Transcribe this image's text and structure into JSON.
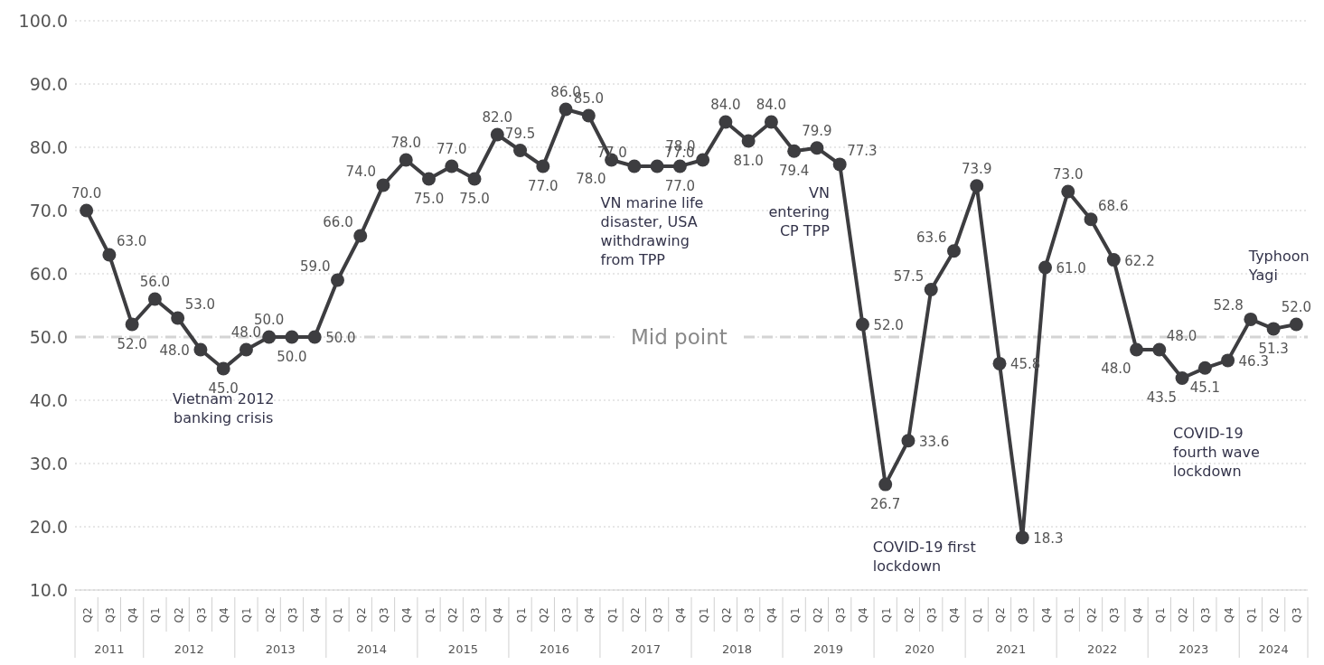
{
  "chart_data": {
    "type": "line",
    "categories": [
      "Q2",
      "Q3",
      "Q4",
      "Q1",
      "Q2",
      "Q3",
      "Q4",
      "Q1",
      "Q2",
      "Q3",
      "Q4",
      "Q1",
      "Q2",
      "Q3",
      "Q4",
      "Q1",
      "Q2",
      "Q3",
      "Q4",
      "Q1",
      "Q2",
      "Q3",
      "Q4",
      "Q1",
      "Q2",
      "Q3",
      "Q4",
      "Q1",
      "Q2",
      "Q3",
      "Q4",
      "Q1",
      "Q2",
      "Q3",
      "Q4",
      "Q1",
      "Q2",
      "Q3",
      "Q4",
      "Q1",
      "Q2",
      "Q3",
      "Q4",
      "Q1",
      "Q2",
      "Q3",
      "Q4",
      "Q1",
      "Q2",
      "Q3",
      "Q4",
      "Q1",
      "Q2",
      "Q3"
    ],
    "series": [
      {
        "color": "#3d3d40",
        "values": [
          70.0,
          63.0,
          52.0,
          56.0,
          53.0,
          48.0,
          45.0,
          48.0,
          50.0,
          50.0,
          50.0,
          59.0,
          66.0,
          74.0,
          78.0,
          75.0,
          77.0,
          75.0,
          82.0,
          79.5,
          77.0,
          86.0,
          85.0,
          78.0,
          77.0,
          77.0,
          77.0,
          78.0,
          84.0,
          81.0,
          84.0,
          79.4,
          79.9,
          77.3,
          52.0,
          26.7,
          33.6,
          57.5,
          63.6,
          73.9,
          45.8,
          18.3,
          61.0,
          73.0,
          68.6,
          62.2,
          48.0,
          48.0,
          43.5,
          45.1,
          46.3,
          52.8,
          51.3,
          52.0
        ],
        "value_labels": [
          "70.0",
          "63.0",
          "52.0",
          "56.0",
          "53.0",
          "48.0",
          "45.0",
          "48.0",
          "50.0",
          "50.0",
          "50.0",
          "59.0",
          "66.0",
          "74.0",
          "78.0",
          "75.0",
          "77.0",
          "75.0",
          "82.0",
          "79.5",
          "77.0",
          "86.0",
          "85.0",
          "78.0",
          "77.0",
          "77.0",
          "77.0",
          "78.0",
          "84.0",
          "81.0",
          "84.0",
          "79.4",
          "79.9",
          "77.3",
          "52.0",
          "26.7",
          "33.6",
          "57.5",
          "63.6",
          "73.9",
          "45.8",
          "18.3",
          "61.0",
          "73.0",
          "68.6",
          "62.2",
          "48.0",
          "48.0",
          "43.5",
          "45.1",
          "46.3",
          "52.8",
          "51.3",
          "52.0"
        ]
      }
    ],
    "ylim": [
      10,
      100
    ],
    "yticks": [
      {
        "value": 10,
        "label": "10.0"
      },
      {
        "value": 20,
        "label": "20.0"
      },
      {
        "value": 30,
        "label": "30.0"
      },
      {
        "value": 40,
        "label": "40.0"
      },
      {
        "value": 50,
        "label": "50.0"
      },
      {
        "value": 60,
        "label": "60.0"
      },
      {
        "value": 70,
        "label": "70.0"
      },
      {
        "value": 80,
        "label": "80.0"
      },
      {
        "value": 90,
        "label": "90.0"
      },
      {
        "value": 100,
        "label": "100.0"
      }
    ],
    "grid": "y",
    "marker": "circle",
    "line_style": "solid",
    "ref_lines": [
      {
        "axis": "y",
        "value": 50,
        "label": "Mid point",
        "color": "#d4d4d4",
        "line_style": "dashed"
      }
    ],
    "annotations": [
      "2011",
      "2012",
      "2013",
      "2014",
      "2015",
      "2016",
      "2017",
      "2018",
      "2019",
      "2020",
      "2021",
      "2022",
      "2023",
      "2024",
      "Vietnam 2012 banking crisis",
      "VN marine life disaster, USA withdrawing from TPP",
      "VN entering CP TPP",
      "COVID-19 first lockdown",
      "COVID-19 fourth wave lockdown",
      "Typhoon Yagi"
    ]
  }
}
